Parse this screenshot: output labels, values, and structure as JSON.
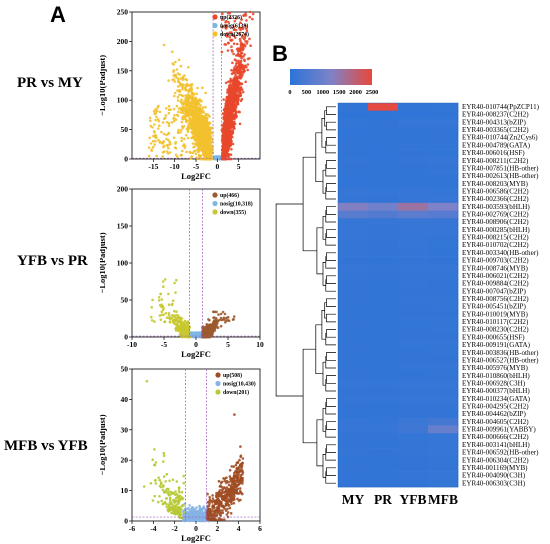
{
  "figure": {
    "panel_a": {
      "letter": "A",
      "xlabel": "Log2FC",
      "ylabel": "−Log10(Padjust)"
    },
    "panel_b": {
      "letter": "B"
    }
  },
  "colors": {
    "up1": "#e8472b",
    "nosig1": "#79b9e0",
    "down1": "#f2c12e",
    "up2": "#9c5a2e",
    "nosig2": "#7fb7e3",
    "down2": "#c8c830",
    "up3": "#a04c23",
    "nosig3": "#86b2e4",
    "down3": "#b7c934",
    "threshold": "#9b59b6",
    "heat_low": "#2a74d8",
    "heat_high": "#e8483b"
  },
  "chart_data": [
    {
      "type": "scatter",
      "comparison": "PR vs MY",
      "xlim": [
        -20,
        10
      ],
      "ylim": [
        0,
        250
      ],
      "xticks": [
        "-15",
        "-10",
        "-5",
        "0",
        "5"
      ],
      "yticks": [
        "0",
        "50",
        "100",
        "150",
        "200",
        "250"
      ],
      "xlabel": "Log2FC",
      "ylabel": "−Log10(Padjust)",
      "legend": [
        "up(2326)",
        "nosig(6139)",
        "down(2674)"
      ]
    },
    {
      "type": "scatter",
      "comparison": "YFB vs PR",
      "xlim": [
        -10,
        10
      ],
      "ylim": [
        0,
        200
      ],
      "xticks": [
        "-10",
        "-5",
        "0",
        "5",
        "10"
      ],
      "yticks": [
        "0",
        "50",
        "100",
        "150",
        "200"
      ],
      "xlabel": "Log2FC",
      "ylabel": "−Log10(Padjust)",
      "legend": [
        "up(466)",
        "nosig(10,318)",
        "down(355)"
      ]
    },
    {
      "type": "scatter",
      "comparison": "MFB vs YFB",
      "xlim": [
        -6,
        6
      ],
      "ylim": [
        0,
        50
      ],
      "xticks": [
        "-6",
        "-4",
        "-2",
        "0",
        "2",
        "4",
        "6"
      ],
      "yticks": [
        "0",
        "10",
        "20",
        "30",
        "40",
        "50"
      ],
      "xlabel": "Log2FC",
      "ylabel": "−Log10(Padjust)",
      "legend": [
        "up(508)",
        "nosig(10,430)",
        "down(201)"
      ]
    },
    {
      "type": "heatmap",
      "colorbar_ticks": [
        "0",
        "500",
        "1000",
        "1500",
        "2000",
        "2500"
      ],
      "columns": [
        "MY",
        "PR",
        "YFB",
        "MFB"
      ],
      "rows": [
        "EYR40-010744(PpZCP11)",
        "EYR40-008237(C2H2)",
        "EYR40-004313(bZIP)",
        "EYR40-003365(C2H2)",
        "EYR40-010744(Zn2Cys6)",
        "EYR40-004789(GATA)",
        "EYR40-006016(HSF)",
        "EYR40-008211(C2H2)",
        "EYR40-007851(HB-other)",
        "EYR40-002613(HB-other)",
        "EYR40-008203(MYB)",
        "EYR40-006586(C2H2)",
        "EYR40-002366(C2H2)",
        "EYR40-003593(bHLH)",
        "EYR40-002769(C2H2)",
        "EYR40-008906(C2H2)",
        "EYR40-000285(bHLH)",
        "EYR40-008215(C2H2)",
        "EYR40-010702(C2H2)",
        "EYR40-003340(HB-other)",
        "EYR40-009703(C2H2)",
        "EYR40-008746(MYB)",
        "EYR40-006021(C2H2)",
        "EYR40-009884(C2H2)",
        "EYR40-007047(bZIP)",
        "EYR40-008756(C2H2)",
        "EYR40-005451(bZIP)",
        "EYR40-010019(MYB)",
        "EYR40-010117(C2H2)",
        "EYR40-008230(C2H2)",
        "EYR40-000655(HSF)",
        "EYR40-009191(GATA)",
        "EYR40-003836(HB-other)",
        "EYR40-006527(HB-other)",
        "EYR40-005976(MYB)",
        "EYR40-010860(bHLH)",
        "EYR40-006928(C3H)",
        "EYR40-000377(bHLH)",
        "EYR40-010234(GATA)",
        "EYR40-004295(C2H2)",
        "EYR40-004462(bZIP)",
        "EYR40-004605(C2H2)",
        "EYR40-009961(YABBY)",
        "EYR40-000666(C2H2)",
        "EYR40-003141(bHLH)",
        "EYR40-006592(HB-other)",
        "EYR40-006304(C2H2)",
        "EYR40-001169(MYB)",
        "EYR40-004090(C3H)",
        "EYR40-006303(C3H)"
      ],
      "values": [
        [
          120,
          2450,
          130,
          150
        ],
        [
          80,
          60,
          90,
          110
        ],
        [
          150,
          130,
          170,
          160
        ],
        [
          90,
          110,
          100,
          120
        ],
        [
          100,
          120,
          110,
          130
        ],
        [
          130,
          100,
          140,
          150
        ],
        [
          110,
          90,
          120,
          100
        ],
        [
          140,
          120,
          150,
          160
        ],
        [
          120,
          110,
          130,
          140
        ],
        [
          100,
          120,
          110,
          120
        ],
        [
          90,
          100,
          100,
          110
        ],
        [
          160,
          140,
          170,
          150
        ],
        [
          150,
          130,
          160,
          170
        ],
        [
          1300,
          1050,
          1600,
          1250
        ],
        [
          700,
          600,
          750,
          650
        ],
        [
          180,
          160,
          200,
          190
        ],
        [
          170,
          150,
          180,
          160
        ],
        [
          160,
          140,
          170,
          150
        ],
        [
          150,
          130,
          160,
          140
        ],
        [
          140,
          120,
          150,
          130
        ],
        [
          130,
          110,
          140,
          120
        ],
        [
          160,
          150,
          170,
          180
        ],
        [
          140,
          120,
          150,
          140
        ],
        [
          130,
          120,
          140,
          130
        ],
        [
          120,
          110,
          130,
          120
        ],
        [
          130,
          120,
          140,
          150
        ],
        [
          120,
          110,
          130,
          140
        ],
        [
          110,
          100,
          120,
          130
        ],
        [
          130,
          120,
          140,
          150
        ],
        [
          120,
          110,
          130,
          140
        ],
        [
          110,
          100,
          120,
          130
        ],
        [
          130,
          120,
          140,
          150
        ],
        [
          120,
          110,
          130,
          140
        ],
        [
          110,
          100,
          120,
          130
        ],
        [
          130,
          120,
          140,
          150
        ],
        [
          120,
          110,
          130,
          140
        ],
        [
          160,
          140,
          170,
          180
        ],
        [
          130,
          120,
          140,
          150
        ],
        [
          150,
          140,
          160,
          170
        ],
        [
          120,
          110,
          130,
          140
        ],
        [
          110,
          100,
          120,
          130
        ],
        [
          160,
          150,
          250,
          400
        ],
        [
          170,
          160,
          300,
          900
        ],
        [
          130,
          120,
          150,
          170
        ],
        [
          120,
          110,
          140,
          160
        ],
        [
          140,
          130,
          150,
          170
        ],
        [
          110,
          100,
          120,
          140
        ],
        [
          120,
          110,
          130,
          150
        ],
        [
          130,
          120,
          140,
          160
        ],
        [
          110,
          100,
          120,
          140
        ]
      ],
      "color_range": [
        0,
        2500
      ]
    }
  ]
}
